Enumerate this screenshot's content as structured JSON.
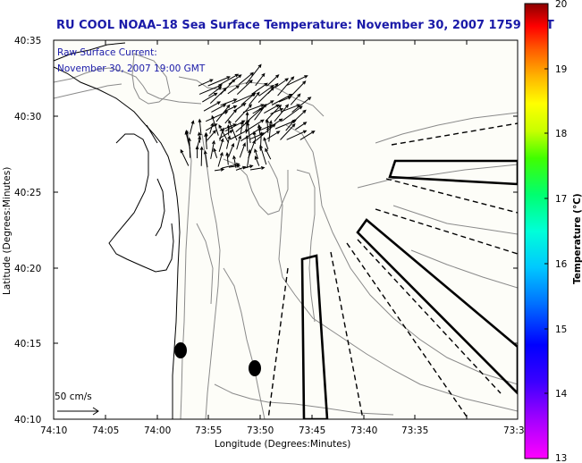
{
  "title": "RU COOL  NOAA–18  Sea Surface Temperature:  November 30, 2007 1759 GMT",
  "annotations": {
    "current_label": "Raw Surface Current:",
    "current_time": "November 30, 2007 19:00 GMT",
    "scale_label": "50 cm/s"
  },
  "axes": {
    "xlabel": "Longitude (Degrees:Minutes)",
    "ylabel": "Latitude (Degrees:Minutes)",
    "xticks": [
      "74:10",
      "74:05",
      "74:00",
      "73:55",
      "73:50",
      "73:45",
      "73:40",
      "73:35",
      "73:3"
    ],
    "yticks": [
      "40:35",
      "40:30",
      "40:25",
      "40:20",
      "40:15",
      "40:10"
    ]
  },
  "colorbar": {
    "label": "Temperature (°C)",
    "ticks": [
      "20",
      "19",
      "18",
      "17",
      "16",
      "15",
      "14",
      "13"
    ],
    "range": [
      13,
      20
    ]
  },
  "colors": {
    "title": "#1a1aa8",
    "contour": "#8a8a8a",
    "coast": "#000000",
    "background": "#fdfdf8"
  }
}
